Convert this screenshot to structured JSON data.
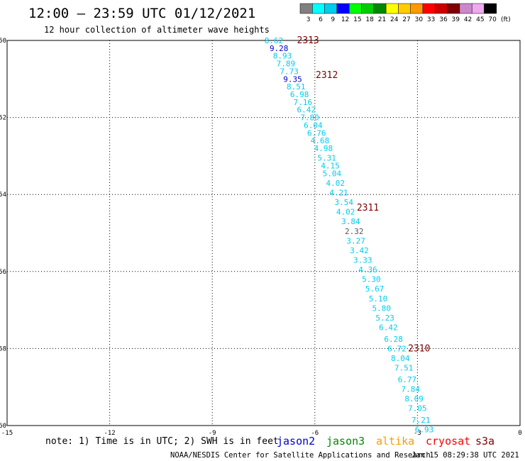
{
  "header": {
    "title": "12:00 – 23:59 UTC 01/12/2021",
    "subtitle": "12 hour collection of altimeter wave heights"
  },
  "legend": {
    "unit": "(ft)",
    "colors": [
      "#808080",
      "#00ffff",
      "#00ccee",
      "#0000ff",
      "#00ff00",
      "#00cc00",
      "#008800",
      "#ffff00",
      "#ffcc00",
      "#ff9900",
      "#ff0000",
      "#cc0000",
      "#800000",
      "#cc88cc",
      "#eeaaee",
      "#000000"
    ],
    "labels": [
      "3",
      "6",
      "9",
      "12",
      "15",
      "18",
      "21",
      "24",
      "27",
      "30",
      "33",
      "36",
      "39",
      "42",
      "45",
      "70"
    ]
  },
  "chart_data": {
    "type": "scatter",
    "title": "12:00 – 23:59 UTC 01/12/2021",
    "subtitle": "12 hour collection of altimeter wave heights",
    "xlim": [
      -15,
      0
    ],
    "ylim": [
      -60,
      -50
    ],
    "xticks": [
      "-15",
      "-12",
      "-9",
      "-6",
      "-3",
      "0"
    ],
    "yticks": [
      "-50",
      "-52",
      "-54",
      "-56",
      "-58",
      "-60"
    ],
    "grid": true,
    "points": [
      {
        "lon": -7.2,
        "lat": -50.0,
        "label": "8.62",
        "color": "#00ccee"
      },
      {
        "lon": -7.05,
        "lat": -50.2,
        "label": "9.28",
        "color": "#0000cc"
      },
      {
        "lon": -6.95,
        "lat": -50.4,
        "label": "8.93",
        "color": "#00ccee"
      },
      {
        "lon": -6.85,
        "lat": -50.6,
        "label": "7.89",
        "color": "#00ccee"
      },
      {
        "lon": -6.75,
        "lat": -50.8,
        "label": "7.73",
        "color": "#00ccee"
      },
      {
        "lon": -6.65,
        "lat": -51.0,
        "label": "9.35",
        "color": "#0000cc"
      },
      {
        "lon": -6.55,
        "lat": -51.2,
        "label": "8.51",
        "color": "#00ccee"
      },
      {
        "lon": -6.45,
        "lat": -51.4,
        "label": "6.98",
        "color": "#00ccee"
      },
      {
        "lon": -6.35,
        "lat": -51.6,
        "label": "7.16",
        "color": "#00ccee"
      },
      {
        "lon": -6.25,
        "lat": -51.8,
        "label": "6.42",
        "color": "#00ccee"
      },
      {
        "lon": -6.15,
        "lat": -52.0,
        "label": "7.80",
        "color": "#00ccee"
      },
      {
        "lon": -6.05,
        "lat": -52.2,
        "label": "6.04",
        "color": "#00ccee"
      },
      {
        "lon": -5.95,
        "lat": -52.4,
        "label": "6.76",
        "color": "#00ccee"
      },
      {
        "lon": -5.85,
        "lat": -52.6,
        "label": "4.68",
        "color": "#00ccee"
      },
      {
        "lon": -5.75,
        "lat": -52.8,
        "label": "4.98",
        "color": "#00ccee"
      },
      {
        "lon": -5.65,
        "lat": -53.05,
        "label": "5.31",
        "color": "#00ccee"
      },
      {
        "lon": -5.55,
        "lat": -53.25,
        "label": "4.15",
        "color": "#00ccee"
      },
      {
        "lon": -5.5,
        "lat": -53.45,
        "label": "5.04",
        "color": "#00ccee"
      },
      {
        "lon": -5.4,
        "lat": -53.7,
        "label": "4.02",
        "color": "#00ccee"
      },
      {
        "lon": -5.3,
        "lat": -53.95,
        "label": "4.21",
        "color": "#00ccee"
      },
      {
        "lon": -5.15,
        "lat": -54.2,
        "label": "3.54",
        "color": "#00ccee"
      },
      {
        "lon": -5.1,
        "lat": -54.45,
        "label": "4.02",
        "color": "#00ccee"
      },
      {
        "lon": -4.95,
        "lat": -54.7,
        "label": "3.84",
        "color": "#00ccee"
      },
      {
        "lon": -4.85,
        "lat": -54.95,
        "label": "2.32",
        "color": "#555555"
      },
      {
        "lon": -4.8,
        "lat": -55.2,
        "label": "3.27",
        "color": "#00ccee"
      },
      {
        "lon": -4.7,
        "lat": -55.45,
        "label": "3.42",
        "color": "#00ccee"
      },
      {
        "lon": -4.6,
        "lat": -55.7,
        "label": "3.33",
        "color": "#00ccee"
      },
      {
        "lon": -4.45,
        "lat": -55.95,
        "label": "4.36",
        "color": "#00ccee"
      },
      {
        "lon": -4.35,
        "lat": -56.2,
        "label": "5.30",
        "color": "#00ccee"
      },
      {
        "lon": -4.25,
        "lat": -56.45,
        "label": "5.67",
        "color": "#00ccee"
      },
      {
        "lon": -4.15,
        "lat": -56.7,
        "label": "5.10",
        "color": "#00ccee"
      },
      {
        "lon": -4.05,
        "lat": -56.95,
        "label": "5.80",
        "color": "#00ccee"
      },
      {
        "lon": -3.95,
        "lat": -57.2,
        "label": "5.23",
        "color": "#00ccee"
      },
      {
        "lon": -3.85,
        "lat": -57.45,
        "label": "6.42",
        "color": "#00ccee"
      },
      {
        "lon": -3.7,
        "lat": -57.75,
        "label": "6.28",
        "color": "#00ccee"
      },
      {
        "lon": -3.6,
        "lat": -58.0,
        "label": "6.72",
        "color": "#00ccee"
      },
      {
        "lon": -3.5,
        "lat": -58.25,
        "label": "8.04",
        "color": "#00ccee"
      },
      {
        "lon": -3.4,
        "lat": -58.5,
        "label": "7.51",
        "color": "#00ccee"
      },
      {
        "lon": -3.3,
        "lat": -58.8,
        "label": "6.77",
        "color": "#00ccee"
      },
      {
        "lon": -3.2,
        "lat": -59.05,
        "label": "7.84",
        "color": "#00ccee"
      },
      {
        "lon": -3.1,
        "lat": -59.3,
        "label": "8.09",
        "color": "#00ccee"
      },
      {
        "lon": -3.0,
        "lat": -59.55,
        "label": "7.05",
        "color": "#00ccee"
      },
      {
        "lon": -2.9,
        "lat": -59.85,
        "label": "7.21",
        "color": "#00ccee"
      },
      {
        "lon": -2.8,
        "lat": -60.1,
        "label": "6.93",
        "color": "#00ccee"
      }
    ],
    "pass_labels": [
      {
        "lon": -6.2,
        "lat": -50.0,
        "label": "2313"
      },
      {
        "lon": -5.65,
        "lat": -50.9,
        "label": "2312"
      },
      {
        "lon": -4.45,
        "lat": -54.35,
        "label": "2311"
      },
      {
        "lon": -2.95,
        "lat": -58.0,
        "label": "2310"
      }
    ]
  },
  "footer": {
    "note": "note: 1) Time is in UTC; 2) SWH is in feet",
    "satellites": [
      {
        "name": "jason2",
        "color": "#0000cc"
      },
      {
        "name": "jason3",
        "color": "#008800"
      },
      {
        "name": "altika",
        "color": "#ff9900"
      },
      {
        "name": "cryosat",
        "color": "#ff0000"
      },
      {
        "name": "s3a",
        "color": "#800000"
      }
    ],
    "credit": "NOAA/NESDIS Center for Satellite Applications and Research",
    "timestamp": "Jan 15 08:29:38 UTC 2021"
  }
}
